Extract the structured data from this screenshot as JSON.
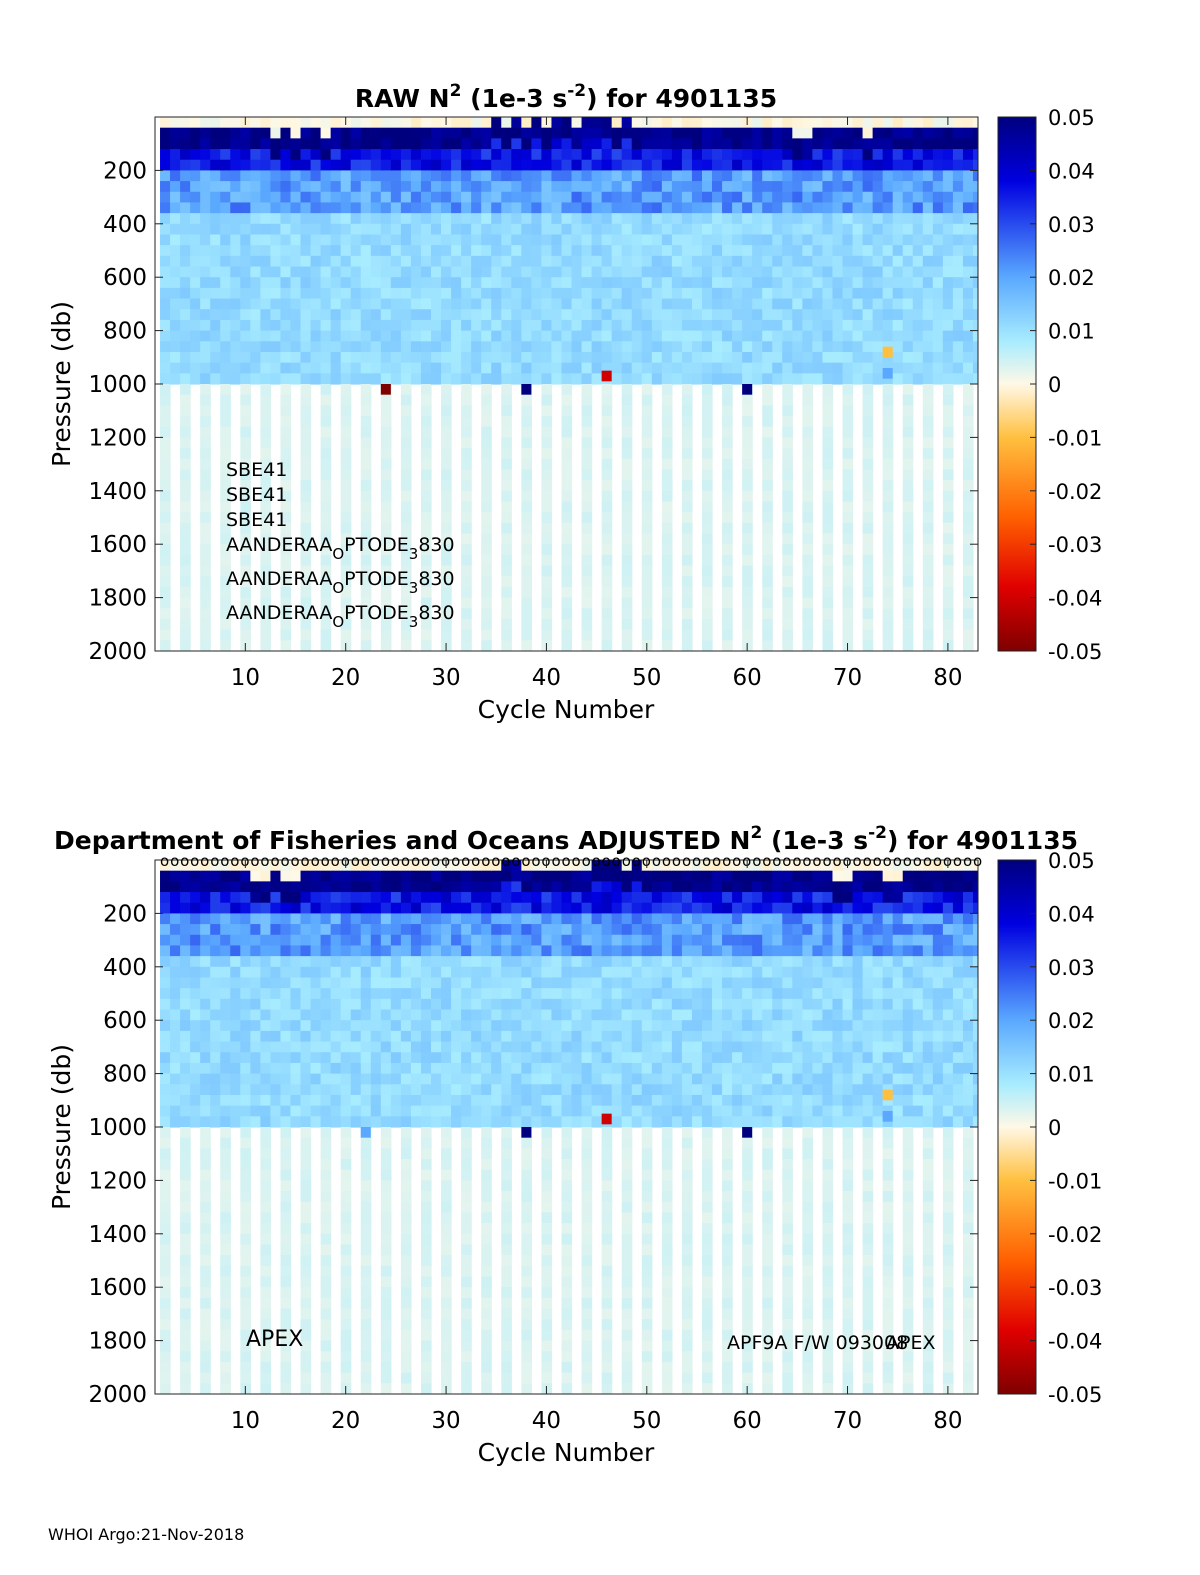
{
  "footer": "WHOI Argo:21-Nov-2018",
  "colors": {
    "deep_blue": "#00007f",
    "blue": "#0000d9",
    "light_blue": "#66b3ff",
    "cyan": "#bff4ff",
    "cream": "#fff3d0",
    "orange": "#ffa500",
    "red": "#ff0000",
    "dark_red": "#7f0000"
  },
  "chart_data": [
    {
      "type": "heatmap",
      "title": "RAW N",
      "title_sup": "2",
      "title_mid": " (1e-3 s",
      "title_sup2": "-2",
      "title_end": ") for 4901135",
      "xlabel": "Cycle Number",
      "ylabel": "Pressure (db)",
      "xlim": [
        1,
        83
      ],
      "ylim": [
        0,
        2000
      ],
      "y_reversed": true,
      "xticks": [
        "10",
        "20",
        "30",
        "40",
        "50",
        "60",
        "70",
        "80"
      ],
      "yticks": [
        "200",
        "400",
        "600",
        "800",
        "1000",
        "1200",
        "1400",
        "1600",
        "1800",
        "2000"
      ],
      "colorbar": {
        "clim": [
          -0.05,
          0.05
        ],
        "ticks": [
          "0.05",
          "0.04",
          "0.03",
          "0.02",
          "0.01",
          "0",
          "-0.01",
          "-0.02",
          "-0.03",
          "-0.04",
          "-0.05"
        ]
      },
      "profile_depth_shallow": 1000,
      "profile_depth_deep": 2000,
      "cycles": 82,
      "anomalies": [
        {
          "cycle": 24,
          "pressure": 1020,
          "value": -0.05
        },
        {
          "cycle": 38,
          "pressure": 1020,
          "value": 0.05
        },
        {
          "cycle": 46,
          "pressure": 970,
          "value": -0.04
        },
        {
          "cycle": 60,
          "pressure": 1020,
          "value": 0.05
        },
        {
          "cycle": 74,
          "pressure": 880,
          "value": -0.01
        },
        {
          "cycle": 74,
          "pressure": 960,
          "value": 0.02
        }
      ],
      "annotations": {
        "sensors": [
          "SBE41",
          "SBE41",
          "SBE41"
        ],
        "optodes": [
          {
            "a": "AANDERAA",
            "s1": "O",
            "b": "PTODE",
            "s2": "3",
            "c": "830"
          },
          {
            "a": "AANDERAA",
            "s1": "O",
            "b": "PTODE",
            "s2": "3",
            "c": "830"
          },
          {
            "a": "AANDERAA",
            "s1": "O",
            "b": "PTODE",
            "s2": "3",
            "c": "830"
          }
        ]
      }
    },
    {
      "type": "heatmap",
      "title": "Department of Fisheries and Oceans  ADJUSTED N",
      "title_sup": "2",
      "title_mid": " (1e-3 s",
      "title_sup2": "-2",
      "title_end": ") for 4901135",
      "xlabel": "Cycle Number",
      "ylabel": "Pressure (db)",
      "xlim": [
        1,
        83
      ],
      "ylim": [
        0,
        2000
      ],
      "y_reversed": true,
      "xticks": [
        "10",
        "20",
        "30",
        "40",
        "50",
        "60",
        "70",
        "80"
      ],
      "yticks": [
        "200",
        "400",
        "600",
        "800",
        "1000",
        "1200",
        "1400",
        "1600",
        "1800",
        "2000"
      ],
      "colorbar": {
        "clim": [
          -0.05,
          0.05
        ],
        "ticks": [
          "0.05",
          "0.04",
          "0.03",
          "0.02",
          "0.01",
          "0",
          "-0.01",
          "-0.02",
          "-0.03",
          "-0.04",
          "-0.05"
        ]
      },
      "profile_depth_shallow": 1000,
      "profile_depth_deep": 2000,
      "cycles": 82,
      "qc_marker": "o",
      "anomalies": [
        {
          "cycle": 22,
          "pressure": 1020,
          "value": 0.02
        },
        {
          "cycle": 38,
          "pressure": 1020,
          "value": 0.05
        },
        {
          "cycle": 46,
          "pressure": 970,
          "value": -0.04
        },
        {
          "cycle": 60,
          "pressure": 1020,
          "value": 0.05
        },
        {
          "cycle": 74,
          "pressure": 880,
          "value": -0.01
        },
        {
          "cycle": 74,
          "pressure": 960,
          "value": 0.02
        }
      ],
      "annotations": {
        "platform_left": "APEX",
        "firmware": "APF9A F/W 093008",
        "platform_right": "APEX"
      }
    }
  ]
}
